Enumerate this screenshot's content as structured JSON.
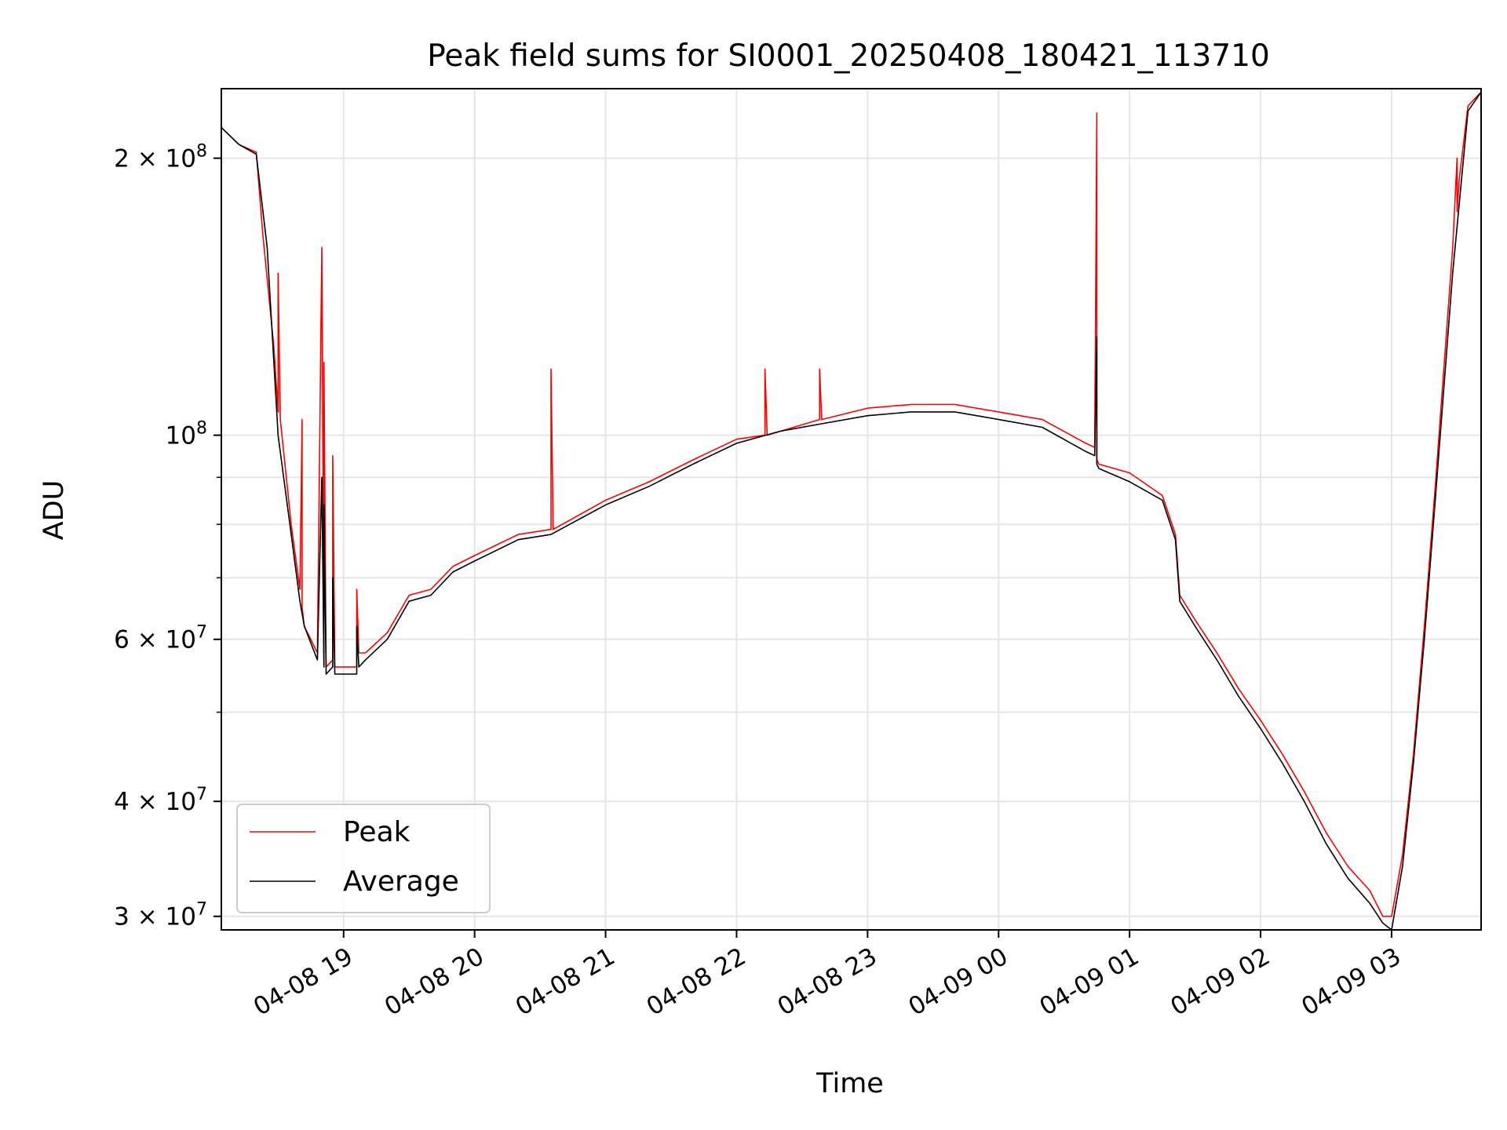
{
  "chart_data": {
    "type": "line",
    "title": "Peak field sums for SI0001_20250408_180421_113710",
    "xlabel": "Time",
    "ylabel": "ADU",
    "yscale": "log",
    "ylim": [
      29000000,
      238000000
    ],
    "xlim": [
      "2025-04-08 18:04",
      "2025-04-09 03:41"
    ],
    "grid": true,
    "legend_position": "lower-left",
    "x_ticks": [
      {
        "value": "2025-04-08 19:00",
        "label": "04-08 19"
      },
      {
        "value": "2025-04-08 20:00",
        "label": "04-08 20"
      },
      {
        "value": "2025-04-08 21:00",
        "label": "04-08 21"
      },
      {
        "value": "2025-04-08 22:00",
        "label": "04-08 22"
      },
      {
        "value": "2025-04-08 23:00",
        "label": "04-08 23"
      },
      {
        "value": "2025-04-09 00:00",
        "label": "04-09 00"
      },
      {
        "value": "2025-04-09 01:00",
        "label": "04-09 01"
      },
      {
        "value": "2025-04-09 02:00",
        "label": "04-09 02"
      },
      {
        "value": "2025-04-09 03:00",
        "label": "04-09 03"
      }
    ],
    "y_ticks": [
      {
        "value": 30000000,
        "base": "3 × 10",
        "exp": "7"
      },
      {
        "value": 40000000,
        "base": "4 × 10",
        "exp": "7"
      },
      {
        "value": 60000000,
        "base": "6 × 10",
        "exp": "7"
      },
      {
        "value": 100000000,
        "base": "10",
        "exp": "8"
      },
      {
        "value": 200000000,
        "base": "2 × 10",
        "exp": "8"
      }
    ],
    "y_minor_ticks": [
      50000000,
      70000000,
      80000000,
      90000000
    ],
    "series": [
      {
        "name": "Peak",
        "color": "#ff0000",
        "x": [
          "2025-04-08 18:04",
          "2025-04-08 18:12",
          "2025-04-08 18:20",
          "2025-04-08 18:23",
          "2025-04-08 18:28",
          "2025-04-08 18:30",
          "2025-04-08 18:30",
          "2025-04-08 18:31",
          "2025-04-08 18:36",
          "2025-04-08 18:40",
          "2025-04-08 18:41",
          "2025-04-08 18:41",
          "2025-04-08 18:42",
          "2025-04-08 18:48",
          "2025-04-08 18:50",
          "2025-04-08 18:51",
          "2025-04-08 18:51",
          "2025-04-08 18:52",
          "2025-04-08 18:55",
          "2025-04-08 18:55",
          "2025-04-08 18:56",
          "2025-04-08 19:06",
          "2025-04-08 19:06",
          "2025-04-08 19:07",
          "2025-04-08 19:10",
          "2025-04-08 19:20",
          "2025-04-08 19:30",
          "2025-04-08 19:40",
          "2025-04-08 19:50",
          "2025-04-08 20:00",
          "2025-04-08 20:20",
          "2025-04-08 20:35",
          "2025-04-08 20:35",
          "2025-04-08 20:36",
          "2025-04-08 21:00",
          "2025-04-08 21:20",
          "2025-04-08 21:40",
          "2025-04-08 22:00",
          "2025-04-08 22:13",
          "2025-04-08 22:13",
          "2025-04-08 22:14",
          "2025-04-08 22:38",
          "2025-04-08 22:38",
          "2025-04-08 22:39",
          "2025-04-08 23:00",
          "2025-04-08 23:20",
          "2025-04-08 23:40",
          "2025-04-09 00:00",
          "2025-04-09 00:20",
          "2025-04-09 00:40",
          "2025-04-09 00:44",
          "2025-04-09 00:45",
          "2025-04-09 00:45",
          "2025-04-09 00:46",
          "2025-04-09 01:00",
          "2025-04-09 01:15",
          "2025-04-09 01:21",
          "2025-04-09 01:23",
          "2025-04-09 01:30",
          "2025-04-09 01:40",
          "2025-04-09 01:50",
          "2025-04-09 02:00",
          "2025-04-09 02:10",
          "2025-04-09 02:20",
          "2025-04-09 02:30",
          "2025-04-09 02:40",
          "2025-04-09 02:50",
          "2025-04-09 02:56",
          "2025-04-09 03:00",
          "2025-04-09 03:05",
          "2025-04-09 03:10",
          "2025-04-09 03:15",
          "2025-04-09 03:20",
          "2025-04-09 03:28",
          "2025-04-09 03:30",
          "2025-04-09 03:30",
          "2025-04-09 03:31",
          "2025-04-09 03:35",
          "2025-04-09 03:41"
        ],
        "y": [
          216000000,
          207000000,
          203000000,
          165000000,
          125000000,
          106000000,
          150000000,
          104000000,
          80000000,
          68000000,
          104000000,
          65000000,
          62000000,
          58000000,
          160000000,
          57000000,
          120000000,
          56000000,
          57000000,
          95000000,
          56000000,
          56000000,
          68000000,
          58000000,
          58000000,
          61000000,
          67000000,
          68000000,
          72000000,
          74000000,
          78000000,
          79000000,
          118000000,
          79000000,
          85000000,
          89000000,
          94000000,
          99000000,
          100000000,
          118000000,
          100000000,
          104000000,
          118000000,
          104000000,
          107000000,
          108000000,
          108000000,
          106000000,
          104000000,
          98000000,
          97000000,
          224000000,
          94000000,
          93000000,
          91000000,
          86000000,
          78000000,
          67000000,
          63000000,
          58000000,
          53000000,
          49000000,
          45000000,
          41000000,
          37000000,
          34000000,
          32000000,
          30000000,
          30000000,
          35000000,
          45000000,
          62000000,
          88000000,
          160000000,
          200000000,
          175000000,
          190000000,
          228000000,
          236000000
        ]
      },
      {
        "name": "Average",
        "color": "#000000",
        "x": [
          "2025-04-08 18:04",
          "2025-04-08 18:12",
          "2025-04-08 18:20",
          "2025-04-08 18:25",
          "2025-04-08 18:30",
          "2025-04-08 18:36",
          "2025-04-08 18:40",
          "2025-04-08 18:42",
          "2025-04-08 18:48",
          "2025-04-08 18:50",
          "2025-04-08 18:51",
          "2025-04-08 18:51",
          "2025-04-08 18:52",
          "2025-04-08 18:55",
          "2025-04-08 18:55",
          "2025-04-08 18:56",
          "2025-04-08 19:06",
          "2025-04-08 19:06",
          "2025-04-08 19:07",
          "2025-04-08 19:10",
          "2025-04-08 19:20",
          "2025-04-08 19:30",
          "2025-04-08 19:40",
          "2025-04-08 19:50",
          "2025-04-08 20:00",
          "2025-04-08 20:20",
          "2025-04-08 20:35",
          "2025-04-08 21:00",
          "2025-04-08 21:20",
          "2025-04-08 21:40",
          "2025-04-08 22:00",
          "2025-04-08 22:20",
          "2025-04-08 22:40",
          "2025-04-08 23:00",
          "2025-04-08 23:20",
          "2025-04-08 23:40",
          "2025-04-09 00:00",
          "2025-04-09 00:20",
          "2025-04-09 00:40",
          "2025-04-09 00:44",
          "2025-04-09 00:45",
          "2025-04-09 00:45",
          "2025-04-09 00:46",
          "2025-04-09 01:00",
          "2025-04-09 01:15",
          "2025-04-09 01:21",
          "2025-04-09 01:23",
          "2025-04-09 01:30",
          "2025-04-09 01:40",
          "2025-04-09 01:50",
          "2025-04-09 02:00",
          "2025-04-09 02:10",
          "2025-04-09 02:20",
          "2025-04-09 02:30",
          "2025-04-09 02:40",
          "2025-04-09 02:50",
          "2025-04-09 02:56",
          "2025-04-09 03:00",
          "2025-04-09 03:05",
          "2025-04-09 03:10",
          "2025-04-09 03:15",
          "2025-04-09 03:20",
          "2025-04-09 03:28",
          "2025-04-09 03:35",
          "2025-04-09 03:41"
        ],
        "y": [
          216000000,
          207000000,
          202000000,
          160000000,
          100000000,
          78000000,
          66000000,
          62000000,
          57000000,
          90000000,
          56000000,
          84000000,
          55000000,
          56000000,
          70000000,
          55000000,
          55000000,
          62000000,
          56000000,
          57000000,
          60000000,
          66000000,
          67000000,
          71000000,
          73000000,
          77000000,
          78000000,
          84000000,
          88000000,
          93000000,
          98000000,
          101000000,
          103000000,
          105000000,
          106000000,
          106000000,
          104000000,
          102000000,
          96000000,
          95000000,
          128000000,
          93000000,
          92000000,
          89000000,
          85000000,
          77000000,
          66000000,
          62000000,
          57000000,
          52000000,
          48000000,
          44000000,
          40000000,
          36000000,
          33000000,
          31000000,
          29500000,
          29000000,
          34000000,
          44000000,
          60000000,
          85000000,
          150000000,
          225000000,
          236000000
        ]
      }
    ]
  }
}
